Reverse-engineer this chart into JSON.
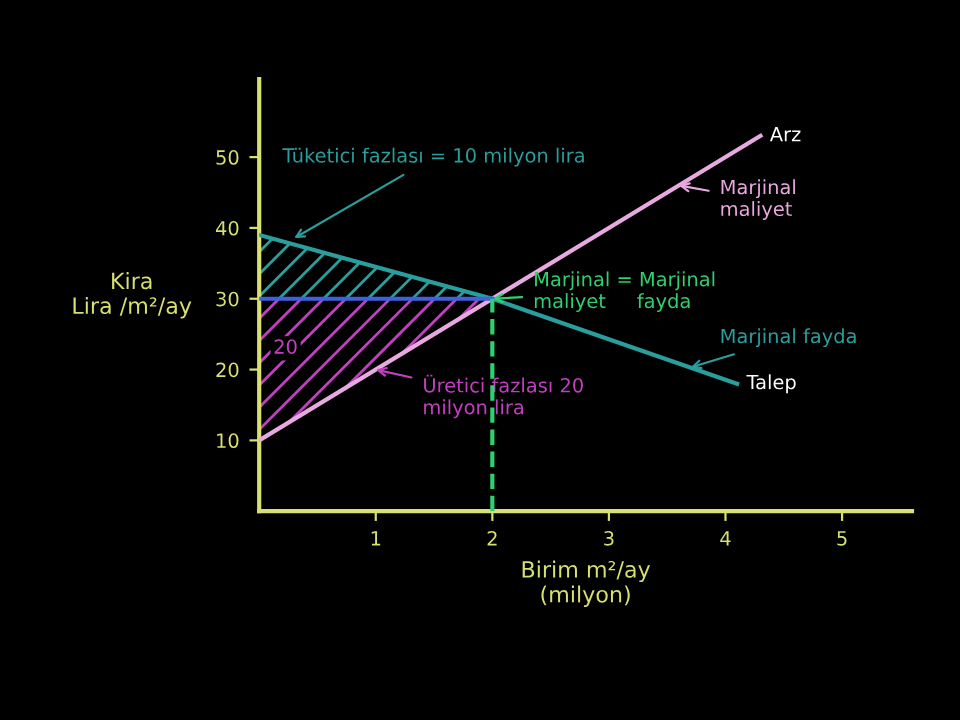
{
  "chart_data": {
    "type": "line",
    "xlabel": "Birim m²/ay\n(milyon)",
    "ylabel": "Kira\nLira /m²/ay",
    "xlim": [
      0,
      5.6
    ],
    "ylim": [
      0,
      61
    ],
    "xticks": [
      1,
      2,
      3,
      4,
      5
    ],
    "yticks": [
      10,
      20,
      30,
      40,
      50
    ],
    "grid": false,
    "legend": false,
    "marker": "none",
    "series": [
      {
        "name": "Arz",
        "color": "#e8a8e0",
        "x": [
          0,
          4.3
        ],
        "values": [
          10,
          53
        ]
      },
      {
        "name": "Talep",
        "color": "#2a9d9d",
        "x": [
          0,
          2,
          4.1
        ],
        "values": [
          39,
          30,
          18
        ]
      }
    ],
    "ref_lines": [
      {
        "axis": "y",
        "value": 30,
        "color": "#4060e0"
      },
      {
        "axis": "x",
        "value": 2,
        "color": "#30d070",
        "line_style": "dashed"
      }
    ],
    "annotations": [
      {
        "text": "Tüketici fazlası = 10 milyon lira",
        "x": 0.3,
        "y": 38.55
      },
      "20",
      {
        "text": "Üretici fazlası 20\nmilyon lira",
        "x": 1.0,
        "y": 20
      },
      {
        "text": "Marjinal = Marjinal\nmaliyet     fayda",
        "x": 2,
        "y": 30
      },
      {
        "text": "Marjinal\nmaliyet",
        "x": 3.6,
        "y": 46
      },
      {
        "text": "Marjinal fayda",
        "x": 3.7,
        "y": 20.3
      }
    ]
  }
}
